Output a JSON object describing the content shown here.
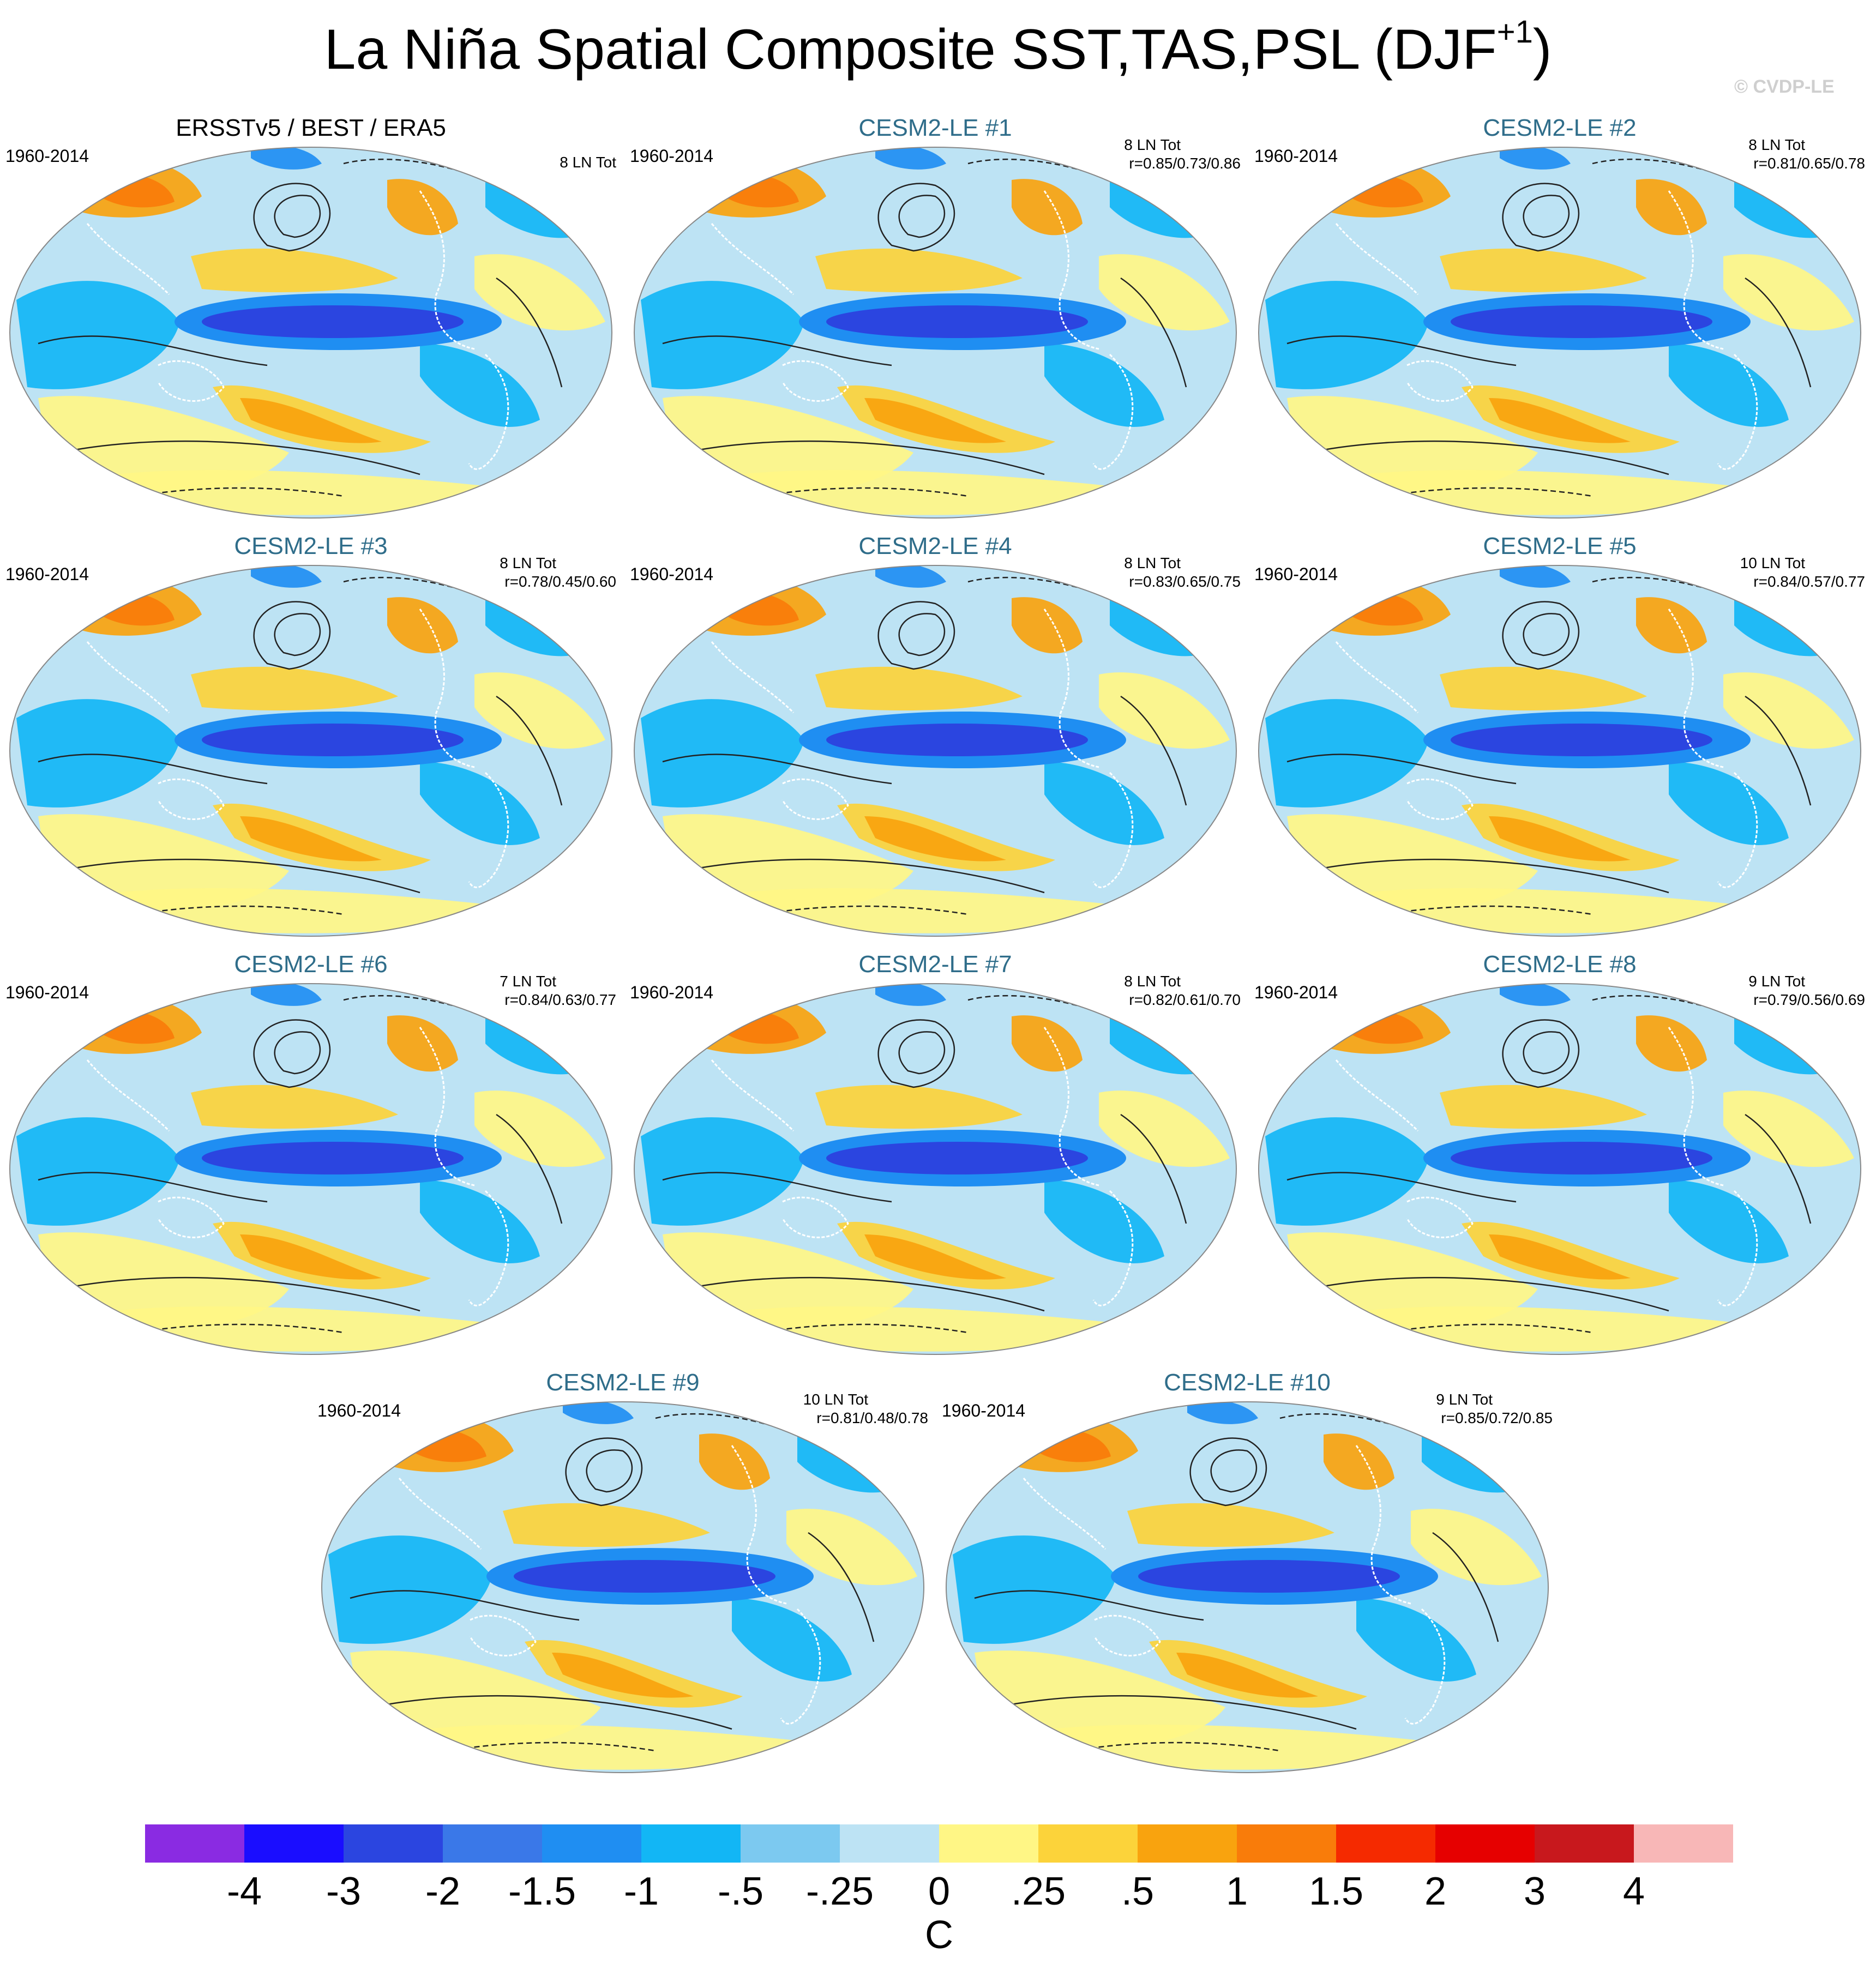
{
  "title": "La Niña Spatial Composite SST,TAS,PSL (DJF",
  "title_superscript": "+1",
  "title_close": ")",
  "credit": "© CVDP-LE",
  "panels": [
    {
      "title": "ERSSTv5 / BEST / ERA5",
      "period": "1960-2014",
      "count": "8 LN Tot",
      "corr": "",
      "observed": true
    },
    {
      "title": "CESM2-LE #1",
      "period": "1960-2014",
      "count": "8 LN Tot",
      "corr": "r=0.85/0.73/0.86"
    },
    {
      "title": "CESM2-LE #2",
      "period": "1960-2014",
      "count": "8 LN Tot",
      "corr": "r=0.81/0.65/0.78"
    },
    {
      "title": "CESM2-LE #3",
      "period": "1960-2014",
      "count": "8 LN Tot",
      "corr": "r=0.78/0.45/0.60"
    },
    {
      "title": "CESM2-LE #4",
      "period": "1960-2014",
      "count": "8 LN Tot",
      "corr": "r=0.83/0.65/0.75"
    },
    {
      "title": "CESM2-LE #5",
      "period": "1960-2014",
      "count": "10 LN Tot",
      "corr": "r=0.84/0.57/0.77"
    },
    {
      "title": "CESM2-LE #6",
      "period": "1960-2014",
      "count": "7 LN Tot",
      "corr": "r=0.84/0.63/0.77"
    },
    {
      "title": "CESM2-LE #7",
      "period": "1960-2014",
      "count": "8 LN Tot",
      "corr": "r=0.82/0.61/0.70"
    },
    {
      "title": "CESM2-LE #8",
      "period": "1960-2014",
      "count": "9 LN Tot",
      "corr": "r=0.79/0.56/0.69"
    },
    {
      "title": "CESM2-LE #9",
      "period": "1960-2014",
      "count": "10 LN Tot",
      "corr": "r=0.81/0.48/0.78"
    },
    {
      "title": "CESM2-LE #10",
      "period": "1960-2014",
      "count": "9 LN Tot",
      "corr": "r=0.85/0.72/0.85"
    }
  ],
  "colorbar": {
    "labels": [
      "-4",
      "-3",
      "-2",
      "-1.5",
      "-1",
      "-.5",
      "-.25",
      "0",
      ".25",
      ".5",
      "1",
      "1.5",
      "2",
      "3",
      "4"
    ],
    "colors": [
      "#8a2be2",
      "#1a0dff",
      "#2b45e0",
      "#3a78e8",
      "#1f8ef2",
      "#12b6f5",
      "#7cc9f0",
      "#bde3f4",
      "#fff685",
      "#fcd33a",
      "#f9a30e",
      "#f97c0a",
      "#f52a00",
      "#e60000",
      "#c8181d",
      "#f8b7b7"
    ],
    "units": "C"
  },
  "colors": {
    "panel_title": "#2f6d8a",
    "ocean_base": "#bde3f4",
    "cold_tongue": "#2b45e0",
    "contour": "#222222",
    "coastline": "#ffffff"
  }
}
